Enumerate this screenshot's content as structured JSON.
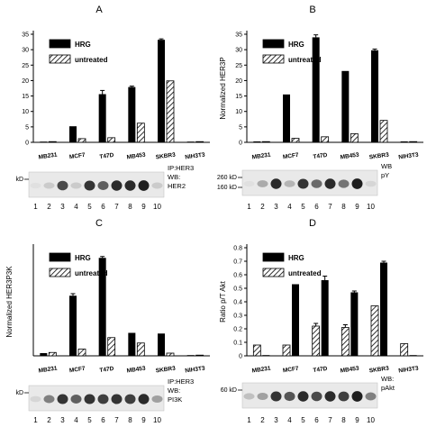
{
  "figure": {
    "panel_labels": [
      "A",
      "B",
      "C",
      "D"
    ]
  },
  "colors": {
    "hrg": "#000000",
    "untreated_hatch": "#000000",
    "band": "#2b2b2b",
    "background": "#ffffff"
  },
  "chart_data": [
    {
      "panel": "A",
      "type": "bar",
      "title": "",
      "ylabel": "",
      "categories": [
        "MB231",
        "MCF7",
        "T47D",
        "MB453",
        "SKBR3",
        "NIH3T3"
      ],
      "ylim": [
        0,
        35
      ],
      "yticks": [
        0,
        5,
        10,
        15,
        20,
        25,
        30,
        35
      ],
      "legend_position": "top-left",
      "series": [
        {
          "name": "HRG",
          "pattern": "solid",
          "values": [
            0,
            5.2,
            15.6,
            17.9,
            33.2,
            0
          ],
          "errors": [
            0,
            0,
            1.2,
            0.3,
            0.3,
            0
          ]
        },
        {
          "name": "untreated",
          "pattern": "hatched",
          "values": [
            0,
            1.2,
            1.5,
            6.2,
            19.9,
            0
          ],
          "errors": [
            0,
            0,
            0,
            0,
            0,
            0
          ]
        }
      ],
      "blot": {
        "left_labels": [
          "kD"
        ],
        "right_labels": [
          "IP:HER3",
          "WB:",
          "HER2"
        ],
        "lanes": [
          "1",
          "2",
          "3",
          "4",
          "5",
          "6",
          "7",
          "8",
          "9",
          "10"
        ],
        "intensity": [
          0.05,
          0.15,
          0.75,
          0.15,
          0.85,
          0.65,
          0.9,
          0.9,
          0.95,
          0.15
        ]
      }
    },
    {
      "panel": "B",
      "type": "bar",
      "title": "",
      "ylabel": "Normalized HER3P",
      "categories": [
        "MB231",
        "MCF7",
        "T47D",
        "MB453",
        "SKBR3",
        "NIH3T3"
      ],
      "ylim": [
        0,
        35
      ],
      "yticks": [
        0,
        5,
        10,
        15,
        20,
        25,
        30,
        35
      ],
      "legend_position": "top-left",
      "series": [
        {
          "name": "HRG",
          "pattern": "solid",
          "values": [
            0.3,
            15.5,
            34.0,
            23.1,
            29.8,
            0.3
          ],
          "errors": [
            0,
            0,
            0.8,
            0,
            0.4,
            0
          ]
        },
        {
          "name": "untreated",
          "pattern": "hatched",
          "values": [
            0.2,
            1.3,
            1.8,
            2.8,
            7.1,
            0.2
          ],
          "errors": [
            0,
            0,
            0,
            0,
            0,
            0
          ]
        }
      ],
      "blot": {
        "left_labels": [
          "260 kD",
          "160 kD"
        ],
        "right_labels": [
          "WB",
          "pY"
        ],
        "lanes": [
          "1",
          "2",
          "3",
          "4",
          "5",
          "6",
          "7",
          "8",
          "9",
          "10"
        ],
        "intensity": [
          0.05,
          0.3,
          0.9,
          0.25,
          0.85,
          0.6,
          0.9,
          0.55,
          0.95,
          0.1
        ]
      }
    },
    {
      "panel": "C",
      "type": "bar",
      "title": "",
      "ylabel": "Normalized HER3P3K",
      "categories": [
        "MB231",
        "MCF7",
        "T47D",
        "MB453",
        "SKBR3",
        "NIH3T3"
      ],
      "ylim": [
        0,
        16
      ],
      "yticks": [],
      "legend_position": "top-left",
      "series": [
        {
          "name": "HRG",
          "pattern": "solid",
          "values": [
            0.4,
            8.9,
            14.5,
            3.4,
            3.3,
            0.1
          ],
          "errors": [
            0,
            0.3,
            0.2,
            0,
            0,
            0
          ]
        },
        {
          "name": "untreated",
          "pattern": "hatched",
          "values": [
            0.5,
            1.0,
            2.7,
            1.9,
            0.4,
            0.1
          ],
          "errors": [
            0,
            0,
            0,
            0,
            0,
            0
          ]
        }
      ],
      "blot": {
        "left_labels": [
          "kD"
        ],
        "right_labels": [
          "IP:HER3",
          "WB:",
          "PI3K"
        ],
        "lanes": [
          "1",
          "2",
          "3",
          "4",
          "5",
          "6",
          "7",
          "8",
          "9",
          "10"
        ],
        "intensity": [
          0.1,
          0.5,
          0.85,
          0.65,
          0.85,
          0.8,
          0.85,
          0.8,
          0.9,
          0.35
        ]
      }
    },
    {
      "panel": "D",
      "type": "bar",
      "title": "",
      "ylabel": "Ratio p/T Akt",
      "categories": [
        "MB231",
        "MCF7",
        "T47D",
        "MB453",
        "SKBR3",
        "NIH3T3"
      ],
      "ylim": [
        0,
        0.8
      ],
      "yticks": [
        0,
        0.1,
        0.2,
        0.3,
        0.4,
        0.5,
        0.6,
        0.7,
        0.8
      ],
      "legend_position": "top-left",
      "series": [
        {
          "name": "untreated",
          "pattern": "hatched",
          "values": [
            0.08,
            0.08,
            0.22,
            0.21,
            0.37,
            0.09
          ],
          "errors": [
            0,
            0,
            0.02,
            0.02,
            0,
            0
          ]
        },
        {
          "name": "HRG",
          "pattern": "solid",
          "values": [
            0,
            0.53,
            0.56,
            0.47,
            0.69,
            0
          ],
          "errors": [
            0,
            0,
            0.03,
            0.01,
            0.01,
            0
          ]
        }
      ],
      "blot": {
        "left_labels": [
          "60 kD"
        ],
        "right_labels": [
          "WB:",
          "pAkt"
        ],
        "lanes": [
          "1",
          "2",
          "3",
          "4",
          "5",
          "6",
          "7",
          "8",
          "9",
          "10"
        ],
        "intensity": [
          0.2,
          0.35,
          0.85,
          0.7,
          0.9,
          0.75,
          0.9,
          0.8,
          0.95,
          0.5
        ]
      }
    }
  ]
}
